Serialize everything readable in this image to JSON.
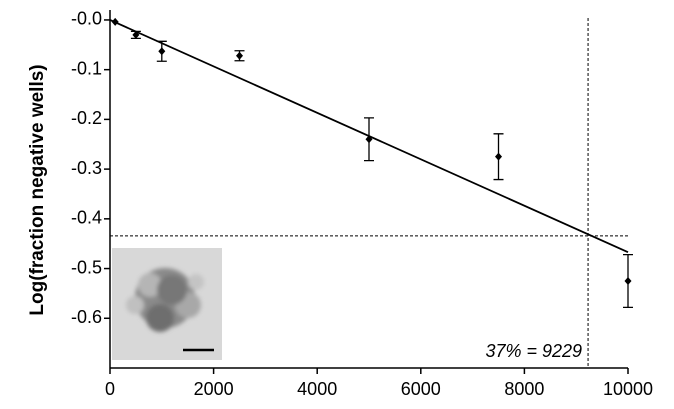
{
  "chart_data": {
    "type": "scatter",
    "y_label": "Log(fraction  negative  wells)",
    "x": [
      100,
      500,
      1000,
      2500,
      5000,
      7500,
      10000
    ],
    "values": [
      -0.004,
      -0.03,
      -0.063,
      -0.072,
      -0.24,
      -0.275,
      -0.525
    ],
    "errors": [
      null,
      0.007,
      0.02,
      0.01,
      0.043,
      0.046,
      0.053
    ],
    "color": "#000000",
    "fit": {
      "x": [
        0,
        10000
      ],
      "y": [
        0,
        -0.467
      ]
    },
    "reference": {
      "x": 9229,
      "y": -0.4343
    },
    "annotation": "37% = 9229",
    "xlim": [
      0,
      10000
    ],
    "xticks": [
      0,
      2000,
      4000,
      6000,
      8000,
      10000
    ],
    "ylim": [
      -0.7,
      0.02
    ],
    "yticks": [
      {
        "value": 0,
        "label": "-0.0"
      },
      -0.1,
      -0.2,
      -0.3,
      -0.4,
      -0.5,
      -0.6
    ]
  }
}
